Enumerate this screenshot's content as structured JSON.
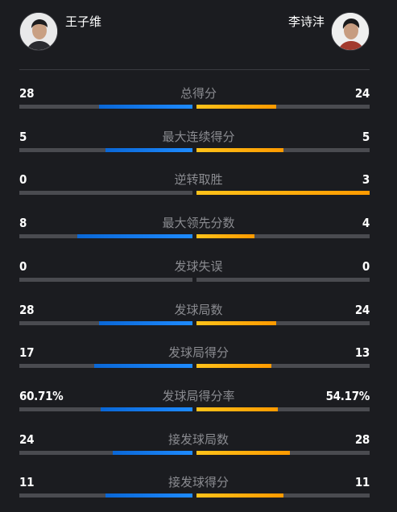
{
  "players": {
    "left": {
      "name": "王子维",
      "avatar_icon": "player-photo-icon"
    },
    "right": {
      "name": "李诗沣",
      "avatar_icon": "player-photo-icon"
    }
  },
  "colors": {
    "background": "#1b1c20",
    "left_bar": "#1e8bff",
    "right_bar": "#ff9a00",
    "track": "#4a4b50",
    "label": "#8a8b90"
  },
  "stats": [
    {
      "label": "总得分",
      "left": "28",
      "right": "24",
      "left_share": 0.538,
      "right_share": 0.462
    },
    {
      "label": "最大连续得分",
      "left": "5",
      "right": "5",
      "left_share": 0.5,
      "right_share": 0.5
    },
    {
      "label": "逆转取胜",
      "left": "0",
      "right": "3",
      "left_share": 0.0,
      "right_share": 1.0
    },
    {
      "label": "最大领先分数",
      "left": "8",
      "right": "4",
      "left_share": 0.667,
      "right_share": 0.333
    },
    {
      "label": "发球失误",
      "left": "0",
      "right": "0",
      "left_share": 0.0,
      "right_share": 0.0
    },
    {
      "label": "发球局数",
      "left": "28",
      "right": "24",
      "left_share": 0.538,
      "right_share": 0.462
    },
    {
      "label": "发球局得分",
      "left": "17",
      "right": "13",
      "left_share": 0.567,
      "right_share": 0.433
    },
    {
      "label": "发球局得分率",
      "left": "60.71%",
      "right": "54.17%",
      "left_share": 0.528,
      "right_share": 0.472
    },
    {
      "label": "接发球局数",
      "left": "24",
      "right": "28",
      "left_share": 0.462,
      "right_share": 0.538
    },
    {
      "label": "接发球得分",
      "left": "11",
      "right": "11",
      "left_share": 0.5,
      "right_share": 0.5
    }
  ]
}
